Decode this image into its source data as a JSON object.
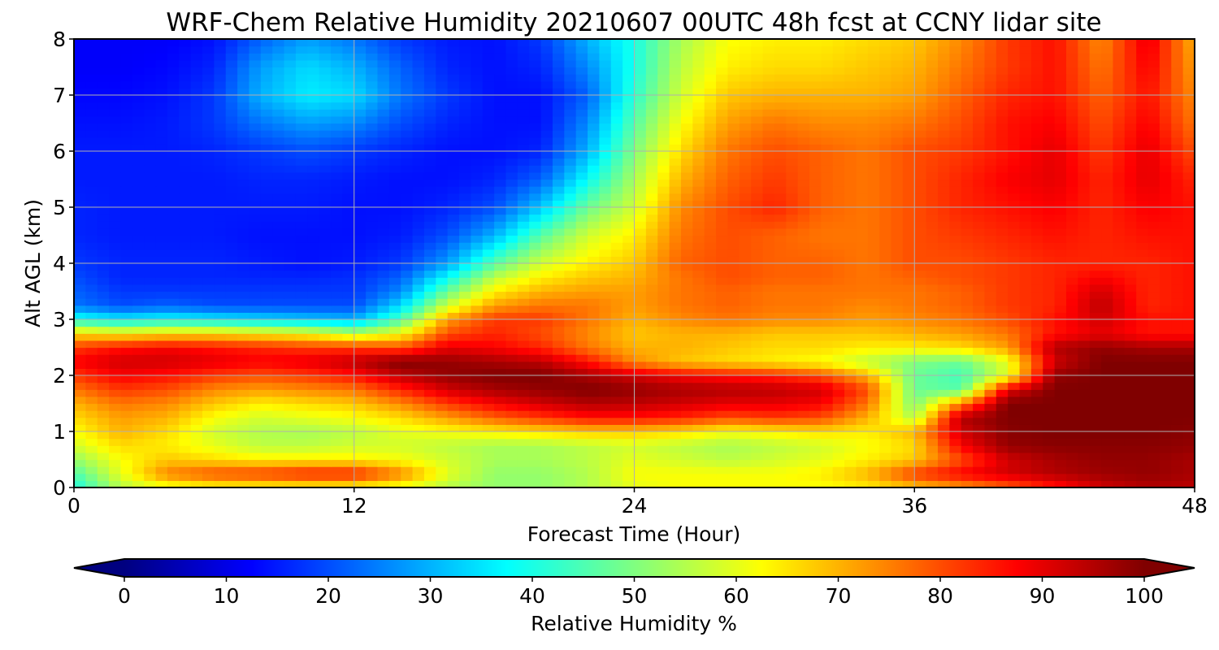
{
  "chart_data": {
    "type": "heatmap",
    "title": "WRF-Chem Relative Humidity 20210607 00UTC 48h fcst at CCNY lidar site",
    "xlabel": "Forecast Time (Hour)",
    "ylabel": "Alt AGL (km)",
    "xlim": [
      0,
      48
    ],
    "ylim": [
      0,
      8
    ],
    "xticks": [
      "0",
      "12",
      "24",
      "36",
      "48"
    ],
    "yticks": [
      "0",
      "1",
      "2",
      "3",
      "4",
      "5",
      "6",
      "7",
      "8"
    ],
    "grid": true,
    "colormap": "jet",
    "colorbar": {
      "label": "Relative Humidity %",
      "range": [
        0,
        100
      ],
      "ticks": [
        "0",
        "10",
        "20",
        "30",
        "40",
        "50",
        "60",
        "70",
        "80",
        "90",
        "100"
      ],
      "extend": "both"
    },
    "x_hours": [
      0,
      2,
      4,
      6,
      8,
      10,
      12,
      14,
      16,
      18,
      20,
      22,
      24,
      26,
      28,
      30,
      32,
      34,
      36,
      38,
      40,
      42,
      44,
      46,
      48
    ],
    "altitudes_km": [
      0,
      0.25,
      0.5,
      0.75,
      1,
      1.25,
      1.5,
      1.75,
      2,
      2.25,
      2.5,
      2.75,
      3,
      3.25,
      3.5,
      3.75,
      4,
      4.5,
      5,
      5.5,
      6,
      6.5,
      7,
      7.5,
      8
    ],
    "rh_rows_by_altitude": [
      [
        40,
        55,
        60,
        62,
        62,
        62,
        62,
        60,
        55,
        52,
        52,
        55,
        60,
        62,
        62,
        62,
        62,
        64,
        68,
        72,
        78,
        85,
        92,
        95,
        94
      ],
      [
        45,
        60,
        75,
        80,
        82,
        85,
        85,
        75,
        60,
        52,
        52,
        55,
        62,
        62,
        62,
        62,
        64,
        70,
        82,
        88,
        92,
        95,
        97,
        98,
        96
      ],
      [
        52,
        62,
        68,
        66,
        64,
        64,
        64,
        62,
        58,
        54,
        54,
        56,
        60,
        58,
        56,
        58,
        60,
        64,
        68,
        80,
        92,
        96,
        98,
        98,
        96
      ],
      [
        58,
        66,
        64,
        60,
        56,
        56,
        58,
        58,
        56,
        54,
        54,
        56,
        58,
        56,
        54,
        56,
        58,
        62,
        66,
        88,
        98,
        99,
        99,
        99,
        98
      ],
      [
        62,
        70,
        66,
        58,
        55,
        54,
        56,
        60,
        62,
        64,
        66,
        68,
        68,
        66,
        62,
        64,
        66,
        64,
        70,
        92,
        99,
        100,
        100,
        100,
        99
      ],
      [
        66,
        72,
        70,
        62,
        58,
        60,
        62,
        66,
        72,
        78,
        82,
        86,
        86,
        84,
        80,
        82,
        80,
        70,
        55,
        95,
        100,
        100,
        100,
        100,
        100
      ],
      [
        70,
        76,
        74,
        68,
        64,
        66,
        68,
        74,
        82,
        88,
        92,
        95,
        94,
        92,
        90,
        90,
        88,
        76,
        50,
        75,
        100,
        100,
        100,
        100,
        100
      ],
      [
        76,
        82,
        80,
        74,
        72,
        74,
        76,
        84,
        92,
        96,
        98,
        100,
        98,
        96,
        95,
        94,
        92,
        80,
        48,
        46,
        90,
        100,
        100,
        100,
        100
      ],
      [
        82,
        88,
        86,
        82,
        80,
        82,
        86,
        94,
        98,
        100,
        100,
        96,
        92,
        88,
        86,
        84,
        80,
        70,
        48,
        44,
        60,
        98,
        100,
        100,
        100
      ],
      [
        88,
        92,
        92,
        90,
        88,
        90,
        94,
        100,
        98,
        96,
        94,
        86,
        74,
        68,
        66,
        64,
        62,
        56,
        50,
        48,
        60,
        92,
        100,
        100,
        100
      ],
      [
        82,
        86,
        88,
        86,
        84,
        82,
        82,
        80,
        90,
        88,
        84,
        76,
        70,
        70,
        68,
        66,
        66,
        64,
        64,
        66,
        72,
        95,
        98,
        96,
        96
      ],
      [
        66,
        64,
        66,
        66,
        64,
        62,
        56,
        62,
        80,
        84,
        80,
        74,
        68,
        70,
        70,
        68,
        68,
        68,
        70,
        72,
        76,
        86,
        90,
        86,
        86
      ],
      [
        40,
        36,
        38,
        36,
        34,
        32,
        30,
        45,
        72,
        82,
        82,
        76,
        70,
        74,
        76,
        74,
        74,
        72,
        74,
        76,
        80,
        86,
        92,
        86,
        86
      ],
      [
        24,
        20,
        22,
        20,
        20,
        20,
        20,
        34,
        58,
        72,
        76,
        76,
        72,
        76,
        78,
        76,
        76,
        74,
        76,
        78,
        82,
        84,
        94,
        84,
        86
      ],
      [
        22,
        18,
        18,
        18,
        18,
        18,
        18,
        26,
        48,
        64,
        70,
        72,
        72,
        76,
        78,
        76,
        76,
        76,
        76,
        78,
        82,
        84,
        92,
        84,
        86
      ],
      [
        20,
        16,
        16,
        16,
        16,
        16,
        17,
        22,
        38,
        56,
        64,
        68,
        70,
        76,
        80,
        78,
        78,
        76,
        78,
        80,
        82,
        84,
        88,
        84,
        86
      ],
      [
        18,
        16,
        16,
        16,
        15,
        14,
        15,
        18,
        28,
        46,
        58,
        64,
        68,
        78,
        80,
        78,
        78,
        76,
        80,
        80,
        82,
        84,
        84,
        84,
        86
      ],
      [
        16,
        15,
        15,
        15,
        14,
        14,
        14,
        15,
        20,
        30,
        46,
        58,
        64,
        76,
        80,
        78,
        76,
        76,
        80,
        82,
        84,
        86,
        84,
        86,
        86
      ],
      [
        16,
        15,
        15,
        15,
        15,
        15,
        14,
        14,
        16,
        20,
        32,
        48,
        58,
        74,
        80,
        84,
        78,
        76,
        80,
        84,
        86,
        88,
        84,
        88,
        86
      ],
      [
        15,
        15,
        15,
        15,
        16,
        16,
        15,
        14,
        14,
        16,
        22,
        38,
        54,
        70,
        78,
        82,
        78,
        76,
        80,
        84,
        88,
        90,
        84,
        90,
        84
      ],
      [
        15,
        15,
        15,
        16,
        18,
        20,
        18,
        16,
        14,
        14,
        16,
        30,
        50,
        66,
        76,
        80,
        78,
        76,
        80,
        82,
        86,
        90,
        82,
        90,
        80
      ],
      [
        14,
        14,
        15,
        18,
        24,
        28,
        26,
        20,
        16,
        14,
        14,
        26,
        46,
        62,
        72,
        76,
        74,
        74,
        76,
        80,
        86,
        88,
        80,
        88,
        76
      ],
      [
        13,
        13,
        14,
        18,
        30,
        36,
        34,
        24,
        18,
        14,
        14,
        22,
        42,
        58,
        68,
        70,
        70,
        70,
        72,
        78,
        84,
        86,
        78,
        86,
        74
      ],
      [
        12,
        12,
        13,
        16,
        28,
        34,
        30,
        22,
        16,
        14,
        16,
        26,
        40,
        56,
        64,
        66,
        66,
        68,
        70,
        76,
        82,
        86,
        76,
        88,
        72
      ],
      [
        12,
        12,
        12,
        14,
        22,
        28,
        24,
        18,
        15,
        14,
        18,
        30,
        40,
        54,
        62,
        64,
        64,
        66,
        68,
        74,
        82,
        86,
        74,
        90,
        70
      ]
    ]
  }
}
